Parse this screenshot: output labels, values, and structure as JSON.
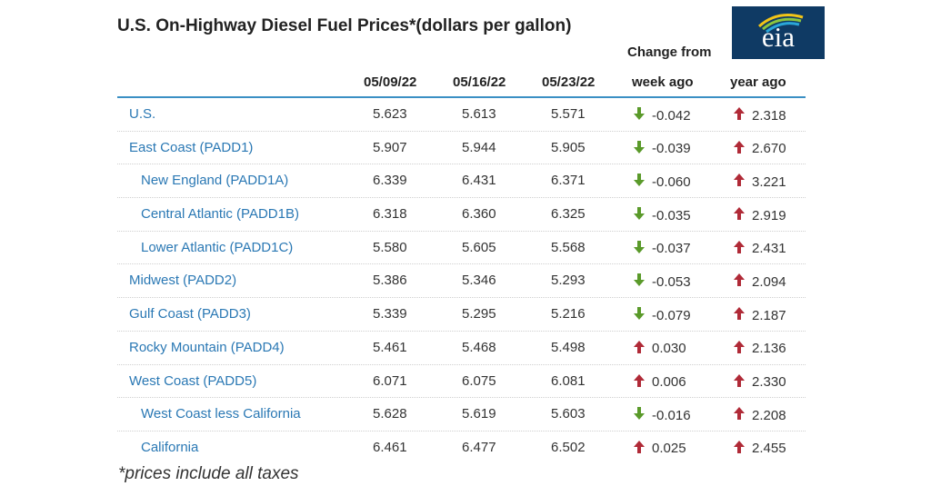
{
  "title": "U.S. On-Highway Diesel Fuel Prices*(dollars per gallon)",
  "logo_text": "eia",
  "header": {
    "change_from": "Change from",
    "col1": "05/09/22",
    "col2": "05/16/22",
    "col3": "05/23/22",
    "col4": "week ago",
    "col5": "year ago"
  },
  "colors": {
    "accent": "#3a8fc4",
    "down": "#5a9a2a",
    "up": "#b02a37",
    "logo_bg": "#0f3a64"
  },
  "rows": [
    {
      "region": "U.S.",
      "level": 0,
      "v1": "5.623",
      "v2": "5.613",
      "v3": "5.571",
      "week": "-0.042",
      "week_dir": "down",
      "year": "2.318",
      "year_dir": "up"
    },
    {
      "region": "East Coast (PADD1)",
      "level": 0,
      "v1": "5.907",
      "v2": "5.944",
      "v3": "5.905",
      "week": "-0.039",
      "week_dir": "down",
      "year": "2.670",
      "year_dir": "up"
    },
    {
      "region": "New England (PADD1A)",
      "level": 1,
      "v1": "6.339",
      "v2": "6.431",
      "v3": "6.371",
      "week": "-0.060",
      "week_dir": "down",
      "year": "3.221",
      "year_dir": "up"
    },
    {
      "region": "Central Atlantic (PADD1B)",
      "level": 1,
      "v1": "6.318",
      "v2": "6.360",
      "v3": "6.325",
      "week": "-0.035",
      "week_dir": "down",
      "year": "2.919",
      "year_dir": "up"
    },
    {
      "region": "Lower Atlantic (PADD1C)",
      "level": 1,
      "v1": "5.580",
      "v2": "5.605",
      "v3": "5.568",
      "week": "-0.037",
      "week_dir": "down",
      "year": "2.431",
      "year_dir": "up"
    },
    {
      "region": "Midwest (PADD2)",
      "level": 0,
      "v1": "5.386",
      "v2": "5.346",
      "v3": "5.293",
      "week": "-0.053",
      "week_dir": "down",
      "year": "2.094",
      "year_dir": "up"
    },
    {
      "region": "Gulf Coast (PADD3)",
      "level": 0,
      "v1": "5.339",
      "v2": "5.295",
      "v3": "5.216",
      "week": "-0.079",
      "week_dir": "down",
      "year": "2.187",
      "year_dir": "up"
    },
    {
      "region": "Rocky Mountain (PADD4)",
      "level": 0,
      "v1": "5.461",
      "v2": "5.468",
      "v3": "5.498",
      "week": "0.030",
      "week_dir": "up",
      "year": "2.136",
      "year_dir": "up"
    },
    {
      "region": "West Coast (PADD5)",
      "level": 0,
      "v1": "6.071",
      "v2": "6.075",
      "v3": "6.081",
      "week": "0.006",
      "week_dir": "up",
      "year": "2.330",
      "year_dir": "up"
    },
    {
      "region": "West Coast less California",
      "level": 1,
      "v1": "5.628",
      "v2": "5.619",
      "v3": "5.603",
      "week": "-0.016",
      "week_dir": "down",
      "year": "2.208",
      "year_dir": "up"
    },
    {
      "region": "California",
      "level": 1,
      "v1": "6.461",
      "v2": "6.477",
      "v3": "6.502",
      "week": "0.025",
      "week_dir": "up",
      "year": "2.455",
      "year_dir": "up"
    }
  ],
  "footnote": "*prices include all taxes"
}
